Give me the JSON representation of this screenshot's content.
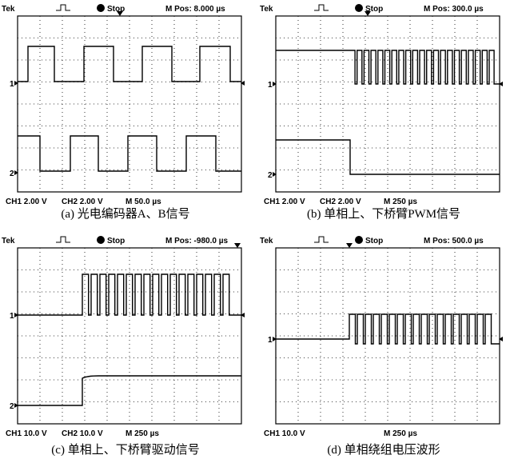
{
  "panels": [
    {
      "header": {
        "brand": "Tek",
        "status": "Stop",
        "position": "M Pos: 8.000 µs"
      },
      "footer": {
        "ch1": "CH1  2.00 V",
        "ch2": "CH2  2.00 V",
        "time": "M 50.0 µs"
      },
      "markers": [
        "1",
        "2"
      ],
      "caption": "(a) 光电编码器A、B信号"
    },
    {
      "header": {
        "brand": "Tek",
        "status": "Stop",
        "position": "M Pos: 300.0 µs"
      },
      "footer": {
        "ch1": "CH1  2.00 V",
        "ch2": "CH2  2.00 V",
        "time": "M 250 µs"
      },
      "markers": [
        "1",
        "2"
      ],
      "caption": "(b) 单相上、下桥臂PWM信号"
    },
    {
      "header": {
        "brand": "Tek",
        "status": "Stop",
        "position": "M Pos: -980.0 µs"
      },
      "footer": {
        "ch1": "CH1  10.0 V",
        "ch2": "CH2  10.0 V",
        "time": "M 250 µs"
      },
      "markers": [
        "1",
        "2"
      ],
      "caption": "(c) 单相上、下桥臂驱动信号"
    },
    {
      "header": {
        "brand": "Tek",
        "status": "Stop",
        "position": "M Pos: 500.0 µs"
      },
      "footer": {
        "ch1": "CH1  10.0 V",
        "time": "M 250 µs"
      },
      "markers": [
        "1"
      ],
      "caption": "(d) 单相绕组电压波形"
    }
  ]
}
